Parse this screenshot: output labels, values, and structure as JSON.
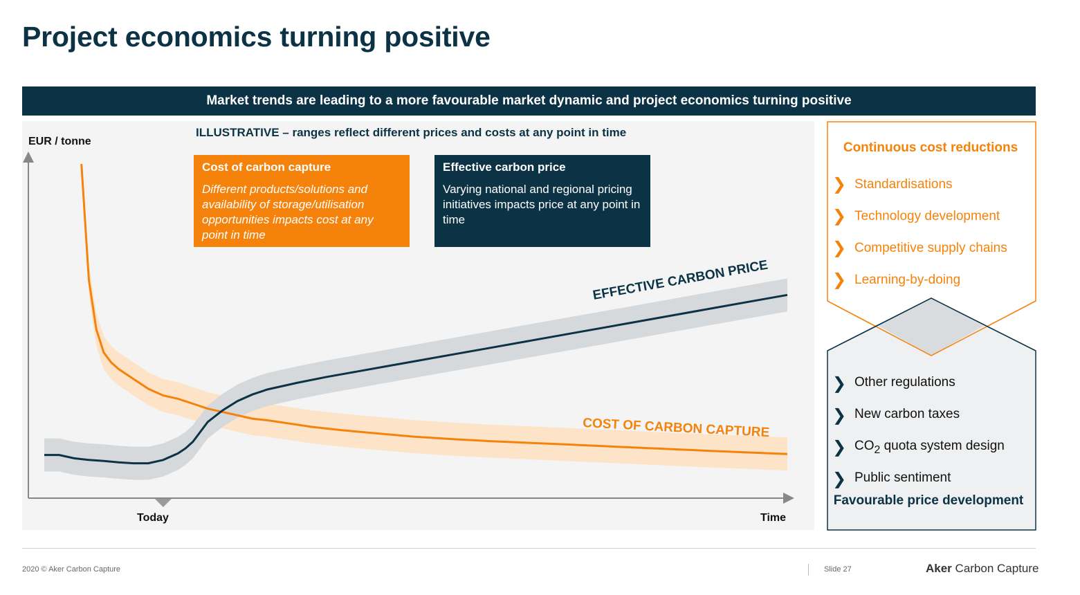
{
  "slide": {
    "title": "Project economics turning positive",
    "banner": "Market trends are leading to a more favourable market dynamic and project economics turning positive",
    "illustrative_note": "ILLUSTRATIVE – ranges reflect different prices and costs at any point in time"
  },
  "callouts": {
    "cost": {
      "title": "Cost of carbon capture",
      "text": "Different products/solutions and availability of storage/utilisation opportunities impacts cost at any point in time"
    },
    "price": {
      "title": "Effective carbon price",
      "text": "Varying national and regional pricing initiatives impacts price at any point in time"
    }
  },
  "chart_data": {
    "type": "line",
    "title": "",
    "ylabel": "EUR / tonne",
    "xlabel_marker": "Today",
    "xlabel_end": "Time",
    "x_range": [
      0,
      100
    ],
    "y_range": [
      0,
      100
    ],
    "colors": {
      "cost": "#f5820b",
      "cost_band": "#fde3c8",
      "price": "#0b3245",
      "price_band": "#d5d9dc"
    },
    "series": [
      {
        "name": "COST OF CARBON CAPTURE",
        "band_width": 5,
        "x": [
          5,
          6,
          7,
          8,
          9,
          10,
          12,
          14,
          16,
          18,
          20,
          22,
          25,
          28,
          30,
          33,
          36,
          40,
          45,
          50,
          55,
          60,
          70,
          80,
          90,
          100
        ],
        "y": [
          100,
          65,
          50,
          43,
          40,
          38,
          35,
          32,
          30,
          29,
          27.5,
          26,
          24.5,
          23,
          22.5,
          21.5,
          20.5,
          19.5,
          18.5,
          17.5,
          16.8,
          16.2,
          15.2,
          14.2,
          13.2,
          12.3
        ]
      },
      {
        "name": "EFFECTIVE CARBON PRICE",
        "band_width": 5,
        "x": [
          0,
          2,
          4,
          6,
          8,
          10,
          12,
          14,
          16,
          18,
          19,
          20,
          22,
          24,
          26,
          28,
          30,
          34,
          38,
          42,
          46,
          50,
          55,
          60,
          66,
          72,
          78,
          84,
          90,
          95,
          100
        ],
        "y": [
          12,
          12,
          11,
          10.5,
          10.2,
          9.8,
          9.5,
          9.5,
          10.5,
          12.5,
          14,
          16,
          22,
          25.5,
          28.3,
          30.3,
          31.8,
          33.8,
          35.6,
          37.2,
          38.8,
          40.4,
          42.4,
          44.4,
          46.8,
          49.2,
          51.6,
          54,
          56.4,
          58.4,
          60.4
        ]
      }
    ],
    "today_marker_x": 16
  },
  "side_panel": {
    "top_header": "Continuous cost reductions",
    "top_items": [
      "Standardisations",
      "Technology development",
      "Competitive supply chains",
      "Learning-by-doing"
    ],
    "bottom_items": [
      {
        "main": "Other regulations",
        "sub": "",
        "tail": ""
      },
      {
        "main": "New carbon taxes",
        "sub": "",
        "tail": ""
      },
      {
        "main": "CO",
        "sub": "2",
        "tail": " quota system design"
      },
      {
        "main": "Public sentiment",
        "sub": "",
        "tail": ""
      }
    ],
    "bottom_footer": "Favourable price development",
    "chevron": "❯"
  },
  "footer": {
    "copyright": "2020 © Aker Carbon Capture",
    "slide_number": "Slide 27",
    "logo_bold": "Aker",
    "logo_rest": " Carbon Capture"
  }
}
